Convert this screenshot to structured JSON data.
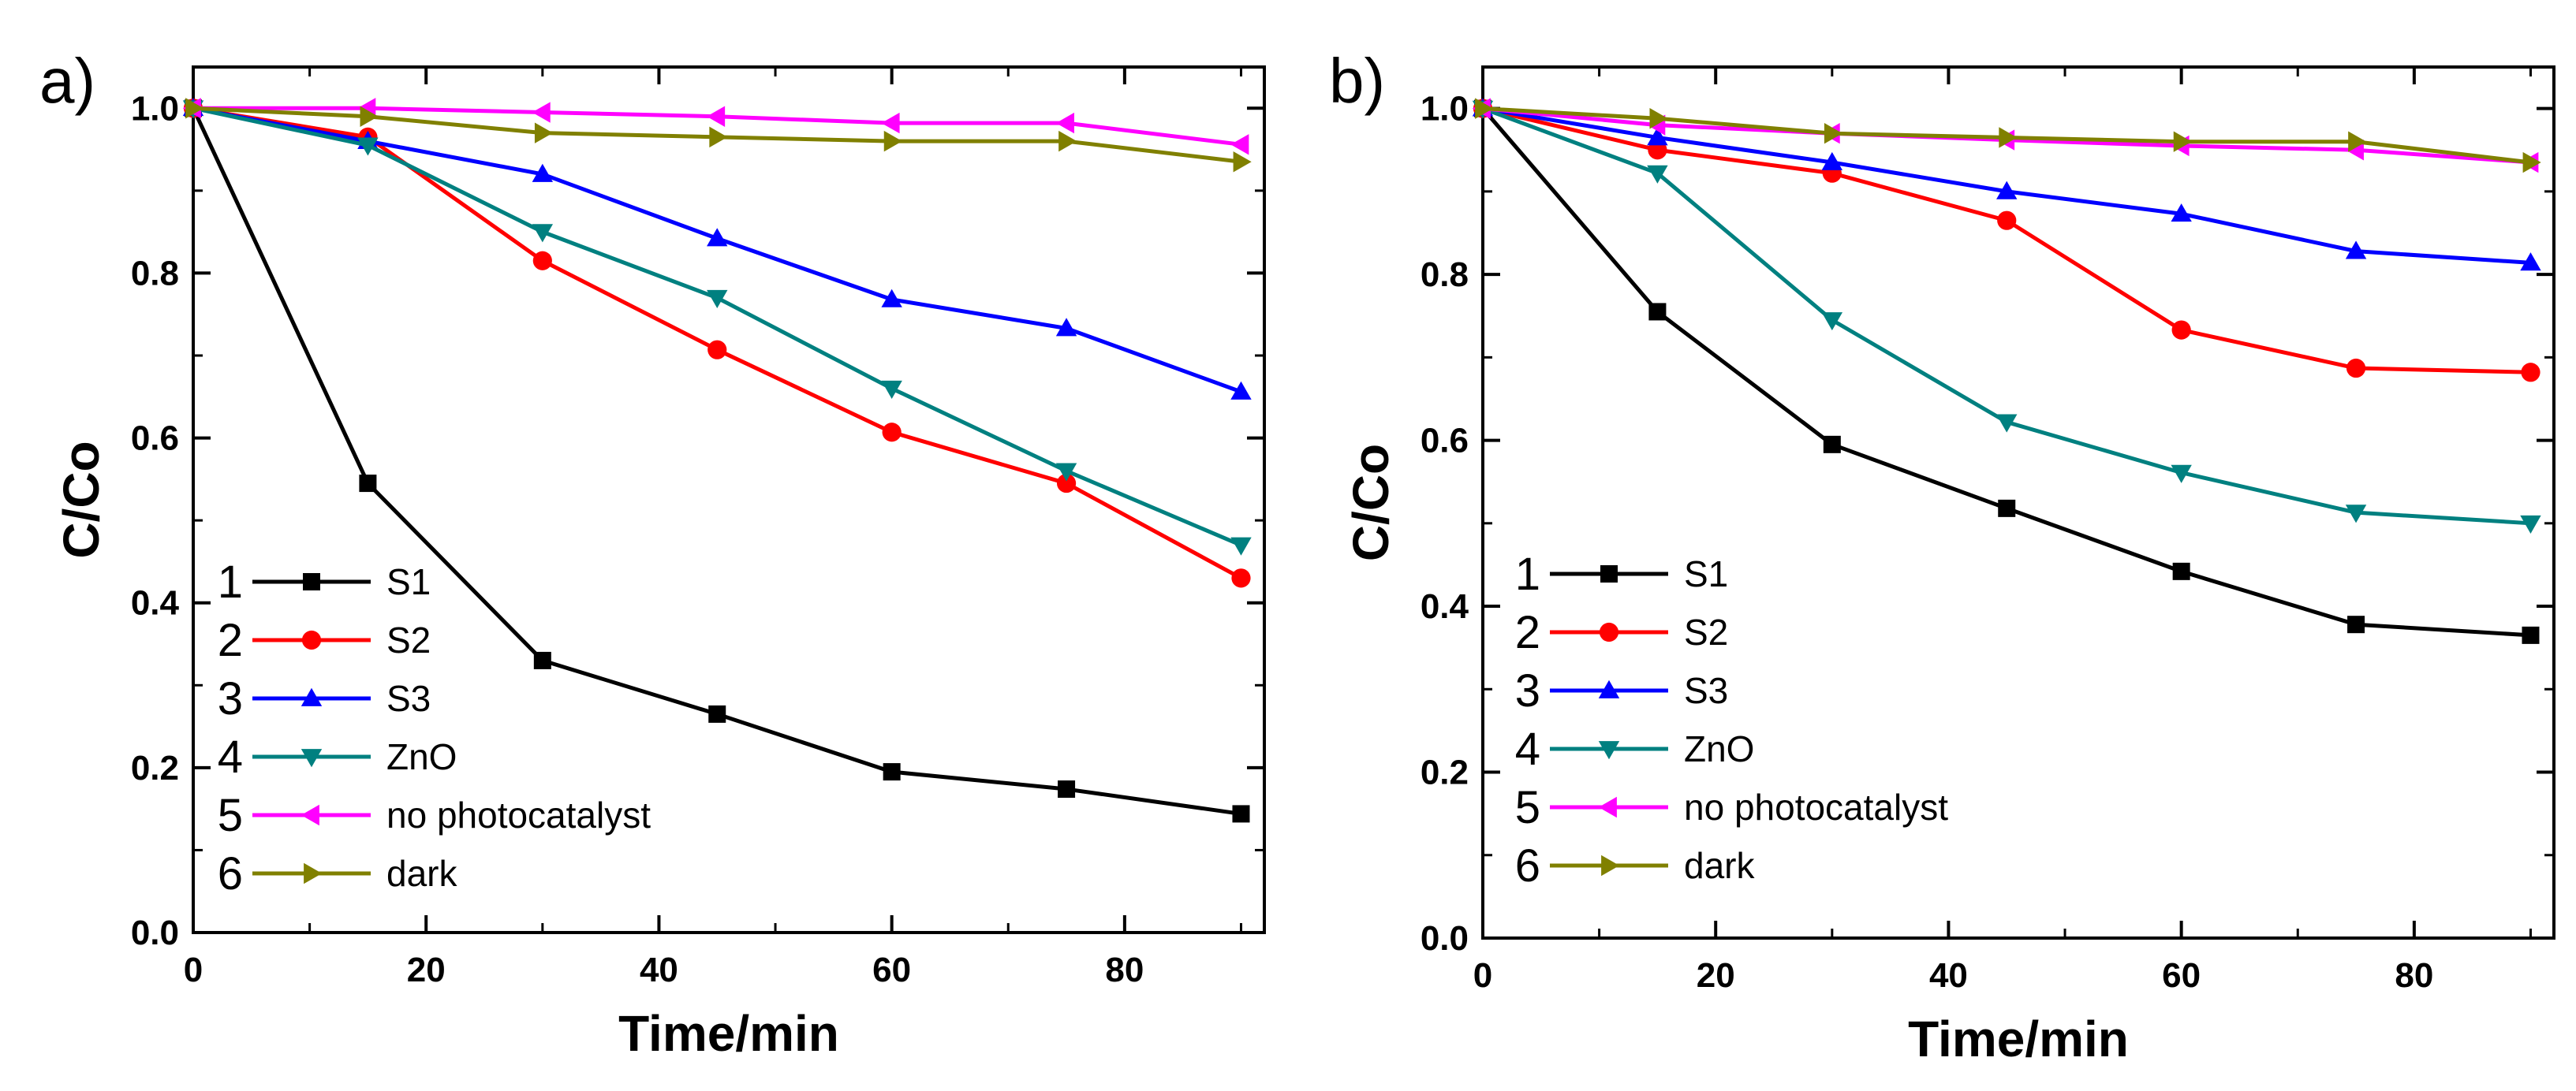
{
  "chart_data": [
    {
      "type": "line",
      "panel_label": "a)",
      "xlabel": "Time/min",
      "ylabel": "C/Co",
      "xlim": [
        0,
        92
      ],
      "ylim": [
        0,
        1.05
      ],
      "x_ticks": [
        "0",
        "20",
        "40",
        "60",
        "80"
      ],
      "y_ticks": [
        "0.0",
        "0.2",
        "0.4",
        "0.6",
        "0.8",
        "1.0"
      ],
      "legend_position": "bottom-left",
      "x": [
        0,
        15,
        30,
        45,
        60,
        75,
        90
      ],
      "series": [
        {
          "num": "1",
          "name": "S1",
          "color": "#000000",
          "marker": "square",
          "values": [
            1.0,
            0.545,
            0.33,
            0.265,
            0.195,
            0.174,
            0.144
          ]
        },
        {
          "num": "2",
          "name": "S2",
          "color": "#ff0000",
          "marker": "circle",
          "values": [
            1.0,
            0.965,
            0.815,
            0.707,
            0.607,
            0.545,
            0.43
          ]
        },
        {
          "num": "3",
          "name": "S3",
          "color": "#0000ff",
          "marker": "triangle-up",
          "values": [
            1.0,
            0.96,
            0.92,
            0.842,
            0.768,
            0.733,
            0.656
          ]
        },
        {
          "num": "4",
          "name": "ZnO",
          "color": "#008080",
          "marker": "triangle-down",
          "values": [
            1.0,
            0.955,
            0.85,
            0.77,
            0.66,
            0.56,
            0.47
          ]
        },
        {
          "num": "5",
          "name": "no photocatalyst",
          "color": "#ff00ff",
          "marker": "triangle-left",
          "values": [
            1.0,
            1.0,
            0.995,
            0.99,
            0.982,
            0.982,
            0.956
          ]
        },
        {
          "num": "6",
          "name": "dark",
          "color": "#808000",
          "marker": "triangle-right",
          "values": [
            1.0,
            0.99,
            0.97,
            0.965,
            0.96,
            0.96,
            0.935
          ]
        }
      ]
    },
    {
      "type": "line",
      "panel_label": "b)",
      "xlabel": "Time/min",
      "ylabel": "C/Co",
      "xlim": [
        0,
        92
      ],
      "ylim": [
        0,
        1.05
      ],
      "x_ticks": [
        "0",
        "20",
        "40",
        "60",
        "80"
      ],
      "y_ticks": [
        "0.0",
        "0.2",
        "0.4",
        "0.6",
        "0.8",
        "1.0"
      ],
      "legend_position": "bottom-left",
      "x": [
        0,
        15,
        30,
        45,
        60,
        75,
        90
      ],
      "series": [
        {
          "num": "1",
          "name": "S1",
          "color": "#000000",
          "marker": "square",
          "values": [
            1.0,
            0.755,
            0.595,
            0.518,
            0.442,
            0.378,
            0.365
          ]
        },
        {
          "num": "2",
          "name": "S2",
          "color": "#ff0000",
          "marker": "circle",
          "values": [
            1.0,
            0.95,
            0.922,
            0.865,
            0.733,
            0.687,
            0.682
          ]
        },
        {
          "num": "3",
          "name": "S3",
          "color": "#0000ff",
          "marker": "triangle-up",
          "values": [
            1.0,
            0.965,
            0.935,
            0.9,
            0.873,
            0.828,
            0.814
          ]
        },
        {
          "num": "4",
          "name": "ZnO",
          "color": "#008080",
          "marker": "triangle-down",
          "values": [
            1.0,
            0.922,
            0.745,
            0.622,
            0.561,
            0.513,
            0.5
          ]
        },
        {
          "num": "5",
          "name": "no photocatalyst",
          "color": "#ff00ff",
          "marker": "triangle-left",
          "values": [
            1.0,
            0.98,
            0.97,
            0.962,
            0.955,
            0.95,
            0.935
          ]
        },
        {
          "num": "6",
          "name": "dark",
          "color": "#808000",
          "marker": "triangle-right",
          "values": [
            1.0,
            0.988,
            0.97,
            0.965,
            0.96,
            0.96,
            0.935
          ]
        }
      ]
    }
  ]
}
